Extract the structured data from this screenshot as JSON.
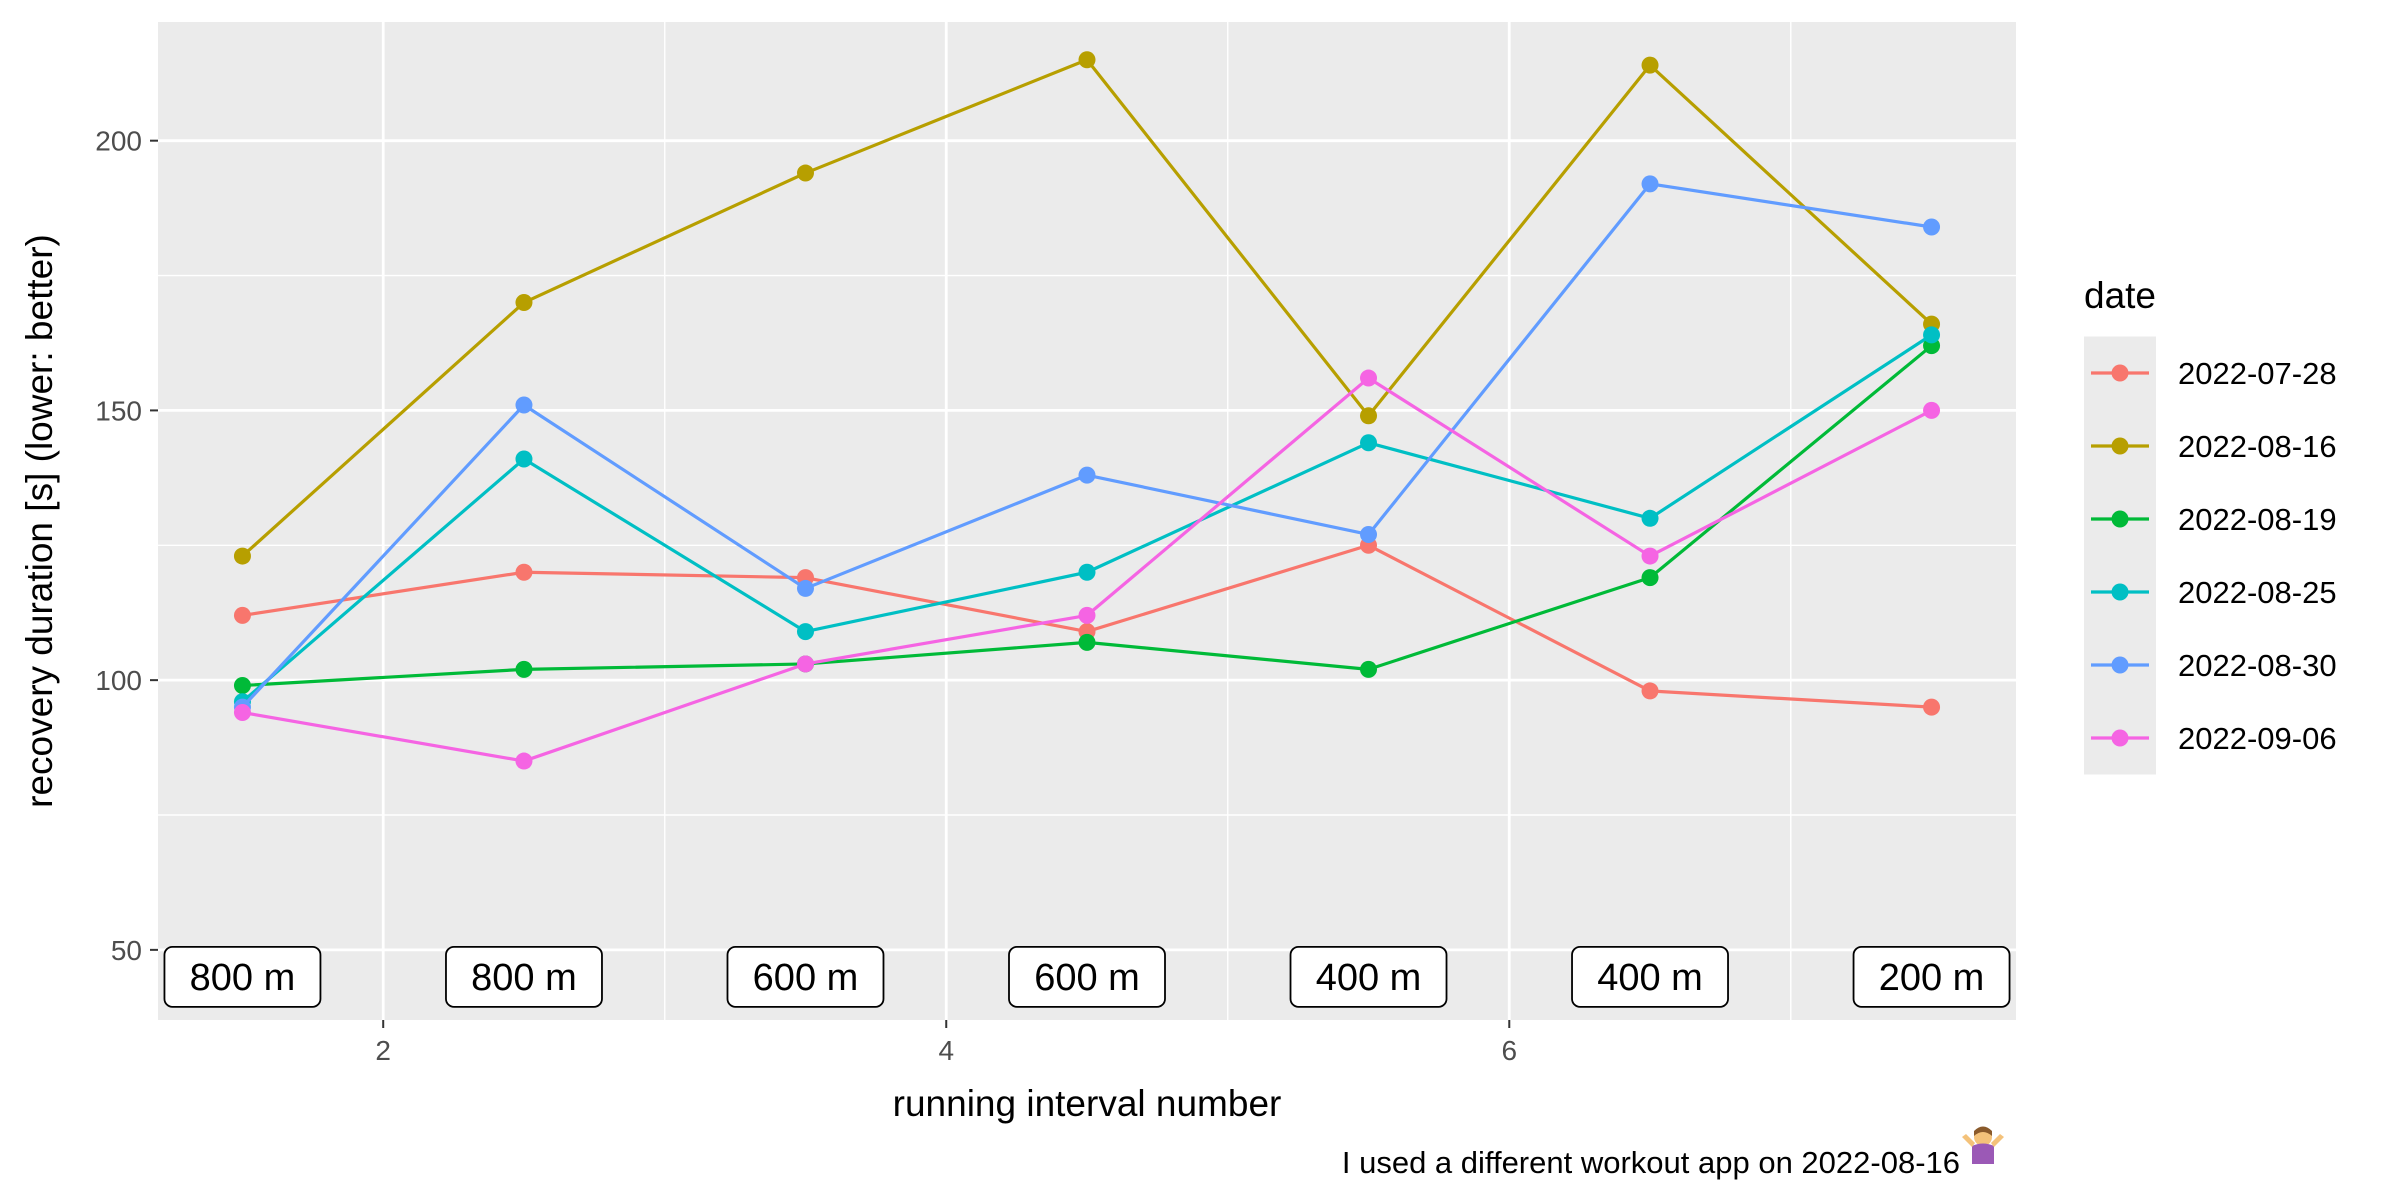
{
  "chart_data": {
    "type": "line",
    "xlabel": "running interval number",
    "ylabel": "recovery duration [s] (lower: better)",
    "caption": "I used a different workout app on 2022-08-16",
    "caption_emoji": "person-shrugging-icon",
    "xlim": [
      1.2,
      7.8
    ],
    "ylim": [
      37,
      222
    ],
    "x_ticks": [
      2,
      4,
      6
    ],
    "x_tick_labels": [
      "2",
      "4",
      "6"
    ],
    "y_ticks": [
      50,
      100,
      150,
      200
    ],
    "y_tick_labels": [
      "50",
      "100",
      "150",
      "200"
    ],
    "grid": true,
    "panel_background": "#ebebeb",
    "legend": {
      "title": "date",
      "position": "right"
    },
    "x": [
      1.5,
      2.5,
      3.5,
      4.5,
      5.5,
      6.5,
      7.5
    ],
    "interval_labels": [
      "800 m",
      "800 m",
      "600 m",
      "600 m",
      "400 m",
      "400 m",
      "200 m"
    ],
    "interval_label_y": 45,
    "series": [
      {
        "name": "2022-07-28",
        "color": "#F8766D",
        "values": [
          112,
          120,
          119,
          109,
          125,
          98,
          95
        ]
      },
      {
        "name": "2022-08-16",
        "color": "#B79F00",
        "values": [
          123,
          170,
          194,
          215,
          149,
          214,
          166
        ]
      },
      {
        "name": "2022-08-19",
        "color": "#00BA38",
        "values": [
          99,
          102,
          103,
          107,
          102,
          119,
          162
        ]
      },
      {
        "name": "2022-08-25",
        "color": "#00BFC4",
        "values": [
          96,
          141,
          109,
          120,
          144,
          130,
          164
        ]
      },
      {
        "name": "2022-08-30",
        "color": "#619CFF",
        "values": [
          95,
          151,
          117,
          138,
          127,
          192,
          184
        ]
      },
      {
        "name": "2022-09-06",
        "color": "#F564E3",
        "values": [
          94,
          85,
          103,
          112,
          156,
          123,
          150
        ]
      }
    ]
  }
}
